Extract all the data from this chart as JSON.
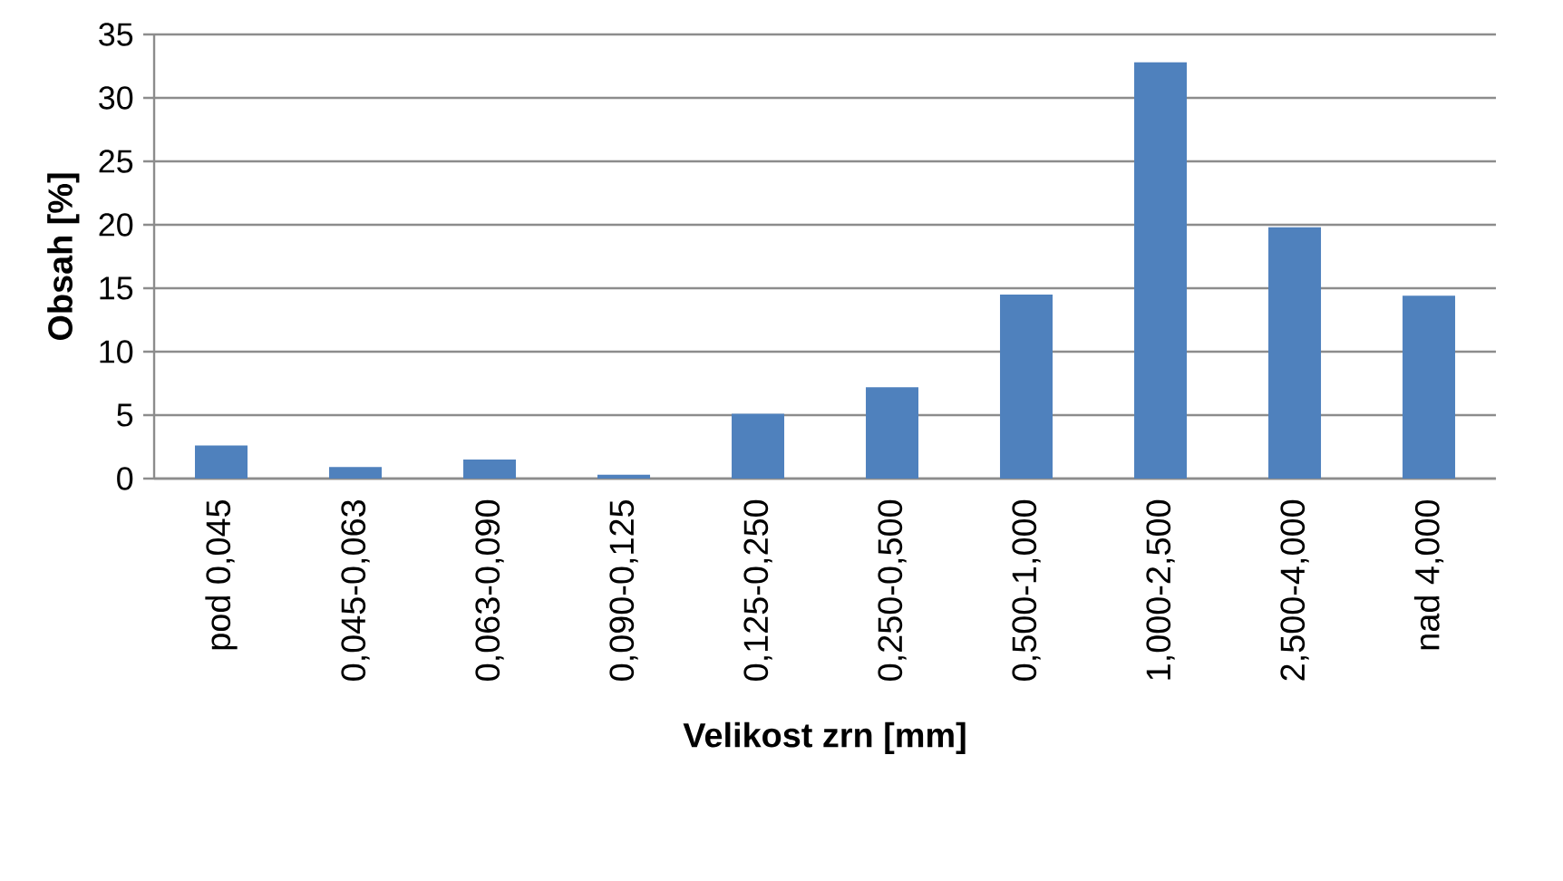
{
  "chart_data": {
    "type": "bar",
    "xlabel": "Velikost zrn [mm]",
    "ylabel": "Obsah [%]",
    "categories": [
      "pod 0,045",
      "0,045-0,063",
      "0,063-0,090",
      "0,090-0,125",
      "0,125-0,250",
      "0,250-0,500",
      "0,500-1,000",
      "1,000-2,500",
      "2,500-4,000",
      "nad 4,000"
    ],
    "values": [
      2.6,
      0.9,
      1.5,
      0.3,
      5.1,
      7.2,
      14.5,
      32.8,
      19.8,
      14.4
    ],
    "color": "#4f81bd",
    "ylim": [
      0,
      35
    ],
    "yticks": [
      0,
      5,
      10,
      15,
      20,
      25,
      30,
      35
    ],
    "grid": "y"
  }
}
